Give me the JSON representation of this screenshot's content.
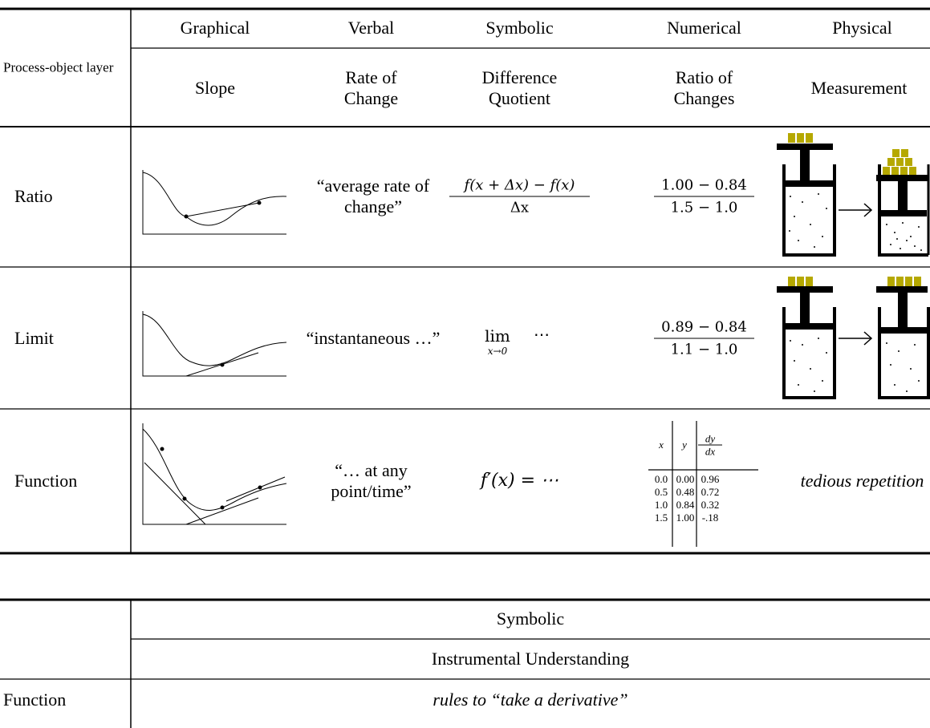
{
  "table1": {
    "corner": "Process-object layer",
    "representations": [
      "Graphical",
      "Verbal",
      "Symbolic",
      "Numerical",
      "Physical"
    ],
    "concepts": [
      "Slope",
      "Rate of Change",
      "Difference Quotient",
      "Ratio of Changes",
      "Measurement"
    ],
    "rows": [
      {
        "layer": "Ratio",
        "verbal": "“average rate of change”",
        "symbolic": {
          "numerator": "f(x + Δx) − f(x)",
          "denominator": "Δx"
        },
        "numerical": {
          "numerator": "1.00 − 0.84",
          "denominator": "1.5 − 1.0"
        }
      },
      {
        "layer": "Limit",
        "verbal": "“instantaneous …”",
        "symbolic": {
          "operator": "lim",
          "subscript": "x→0",
          "body": "⋯"
        },
        "numerical": {
          "numerator": "0.89 − 0.84",
          "denominator": "1.1 − 1.0"
        }
      },
      {
        "layer": "Function",
        "verbal": "“… at any point/time”",
        "symbolic": "f′(x) = ⋯",
        "numerical": {
          "header": [
            "x",
            "y",
            {
              "numerator": "dy",
              "denominator": "dx"
            }
          ],
          "rows": [
            [
              "0.0",
              "0.00",
              "0.96"
            ],
            [
              "0.5",
              "0.48",
              "0.72"
            ],
            [
              "1.0",
              "0.84",
              "0.32"
            ],
            [
              "1.5",
              "1.00",
              "-.18"
            ]
          ]
        },
        "physical": "tedious repetition"
      }
    ]
  },
  "table2": {
    "header": "Symbolic",
    "subheader": "Instrumental Understanding",
    "row_label": "Function",
    "cell": "rules to “take a derivative”"
  }
}
